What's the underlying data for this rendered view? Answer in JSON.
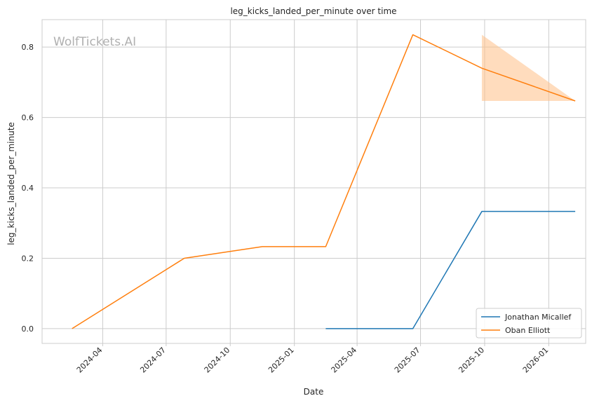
{
  "chart_data": {
    "type": "line",
    "title": "leg_kicks_landed_per_minute over time",
    "xlabel": "Date",
    "ylabel": "leg_kicks_landed_per_minute",
    "watermark": "WolfTickets.AI",
    "ylim": [
      -0.042,
      0.878
    ],
    "xlim": [
      "2024-01-05",
      "2026-02-23"
    ],
    "x_ticks": [
      "2024-04",
      "2024-07",
      "2024-10",
      "2025-01",
      "2025-04",
      "2025-07",
      "2025-10",
      "2026-01"
    ],
    "y_ticks": [
      "0.0",
      "0.2",
      "0.4",
      "0.6",
      "0.8"
    ],
    "grid": true,
    "legend_position": "bottom-right",
    "series": [
      {
        "name": "Jonathan Micallef",
        "color": "#1f77b4",
        "points": [
          {
            "x": "2025-02-15",
            "y": 0.0
          },
          {
            "x": "2025-06-20",
            "y": 0.0
          },
          {
            "x": "2025-09-27",
            "y": 0.333
          },
          {
            "x": "2026-02-08",
            "y": 0.333
          }
        ]
      },
      {
        "name": "Oban Elliott",
        "color": "#ff7f0e",
        "points": [
          {
            "x": "2024-02-17",
            "y": 0.0
          },
          {
            "x": "2024-07-27",
            "y": 0.2
          },
          {
            "x": "2024-11-16",
            "y": 0.233
          },
          {
            "x": "2025-02-15",
            "y": 0.233
          },
          {
            "x": "2025-06-20",
            "y": 0.835
          },
          {
            "x": "2025-09-27",
            "y": 0.74
          },
          {
            "x": "2026-02-08",
            "y": 0.647
          }
        ],
        "band": {
          "color": "#ffbf86",
          "points": [
            {
              "x": "2025-09-27",
              "low": 0.647,
              "high": 0.835
            },
            {
              "x": "2026-02-08",
              "low": 0.647,
              "high": 0.647
            }
          ]
        }
      }
    ]
  }
}
